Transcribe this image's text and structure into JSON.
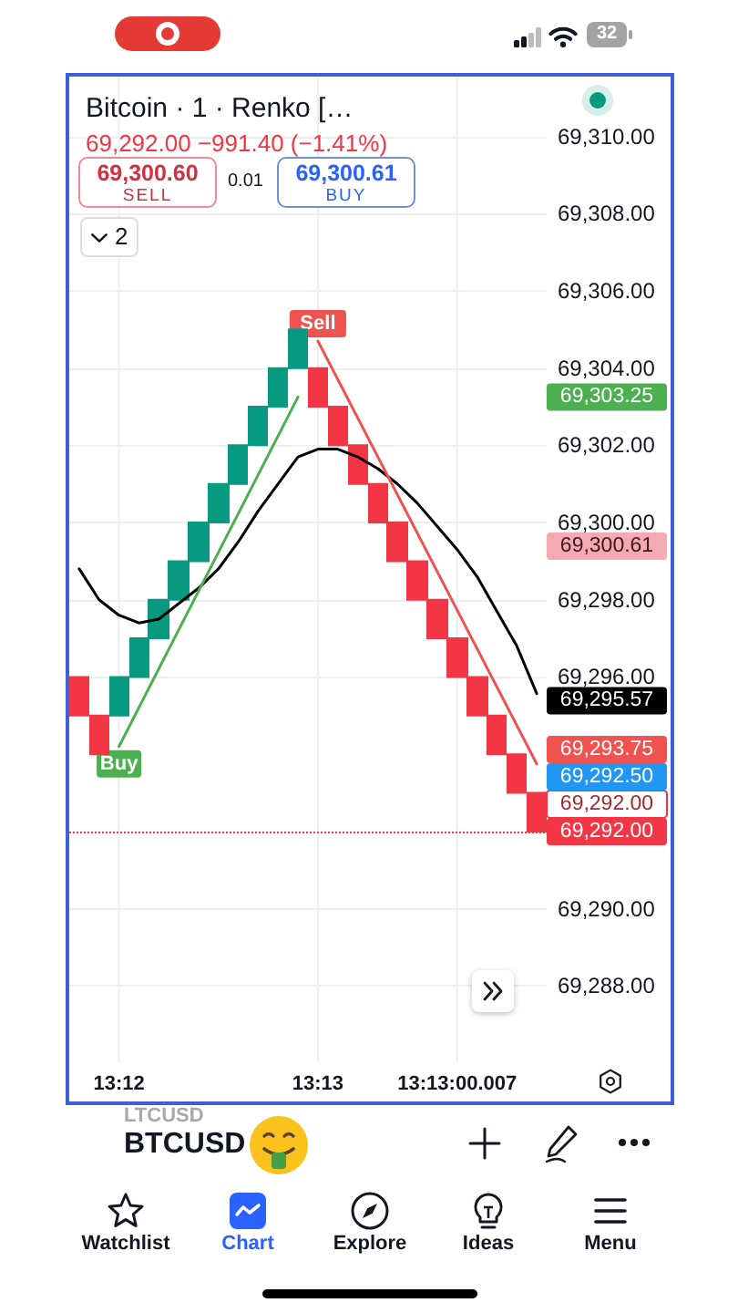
{
  "chart_data": {
    "type": "candlestick",
    "title": "Bitcoin · 1 · Renko […",
    "subtitle": "69,292.00 −991.40 (−1.41%)",
    "categories": [
      null,
      null,
      "13:12",
      null,
      null,
      null,
      null,
      null,
      null,
      null,
      null,
      null,
      "13:13",
      null,
      null,
      null,
      null,
      null,
      null,
      "13:13:00.007",
      null,
      null,
      null,
      null
    ],
    "ohlc": [
      [
        69296,
        69296,
        69295,
        69295
      ],
      [
        69295,
        69295,
        69294,
        69294
      ],
      [
        69295,
        69296,
        69295,
        69296
      ],
      [
        69296,
        69297,
        69296,
        69297
      ],
      [
        69297,
        69298,
        69297,
        69298
      ],
      [
        69298,
        69299,
        69298,
        69299
      ],
      [
        69299,
        69300,
        69299,
        69300
      ],
      [
        69300,
        69301,
        69300,
        69301
      ],
      [
        69301,
        69302,
        69301,
        69302
      ],
      [
        69302,
        69303,
        69302,
        69303
      ],
      [
        69303,
        69304,
        69303,
        69304
      ],
      [
        69304,
        69305,
        69304,
        69305
      ],
      [
        69304,
        69304,
        69303,
        69303
      ],
      [
        69303,
        69303,
        69302,
        69302
      ],
      [
        69302,
        69302,
        69301,
        69301
      ],
      [
        69301,
        69301,
        69300,
        69300
      ],
      [
        69300,
        69300,
        69299,
        69299
      ],
      [
        69299,
        69299,
        69298,
        69298
      ],
      [
        69298,
        69298,
        69297,
        69297
      ],
      [
        69297,
        69297,
        69296,
        69296
      ],
      [
        69296,
        69296,
        69295,
        69295
      ],
      [
        69295,
        69295,
        69294,
        69294
      ],
      [
        69294,
        69294,
        69293,
        69293
      ],
      [
        69293,
        69293,
        69292,
        69292
      ]
    ],
    "colors": [
      "#f23645",
      "#f23645",
      "#089981",
      "#089981",
      "#089981",
      "#089981",
      "#089981",
      "#089981",
      "#089981",
      "#089981",
      "#089981",
      "#089981",
      "#f23645",
      "#f23645",
      "#f23645",
      "#f23645",
      "#f23645",
      "#f23645",
      "#f23645",
      "#f23645",
      "#f23645",
      "#f23645",
      "#f23645",
      "#f23645"
    ],
    "series": [
      {
        "type": "line",
        "color": "#000000",
        "values": [
          69298.8,
          69298.0,
          69297.6,
          69297.4,
          69297.5,
          69297.9,
          69298.3,
          69298.8,
          69299.5,
          69300.3,
          69301.0,
          69301.7,
          69301.9,
          69301.9,
          69301.7,
          69301.4,
          69301.0,
          69300.5,
          69299.9,
          69299.3,
          69298.6,
          69297.7,
          69296.8,
          69295.57
        ],
        "value_labels": [
          null,
          null,
          null,
          null,
          null,
          null,
          null,
          null,
          null,
          null,
          null,
          null,
          null,
          null,
          null,
          null,
          null,
          null,
          null,
          null,
          null,
          null,
          null,
          "69,295.57"
        ]
      },
      {
        "type": "line",
        "color": "#4caf50",
        "values": [
          null,
          null,
          69294.2,
          null,
          null,
          null,
          null,
          null,
          null,
          null,
          null,
          69303.25,
          null,
          null,
          null,
          null,
          null,
          null,
          null,
          null,
          null,
          null,
          null,
          null
        ]
      },
      {
        "type": "line",
        "color": "#ef5350",
        "values": [
          null,
          null,
          null,
          null,
          null,
          null,
          null,
          null,
          null,
          null,
          null,
          null,
          69304.7,
          null,
          null,
          null,
          null,
          null,
          null,
          null,
          null,
          null,
          null,
          69293.75
        ],
        "value_labels": [
          null,
          null,
          null,
          null,
          null,
          null,
          null,
          null,
          null,
          null,
          null,
          null,
          null,
          null,
          null,
          null,
          null,
          null,
          null,
          null,
          null,
          null,
          null,
          "69,293.75"
        ]
      }
    ],
    "ylim": [
      69286,
      69311.5
    ],
    "yticks": [
      {
        "value": 69288,
        "label": "69,288.00"
      },
      {
        "value": 69290,
        "label": "69,290.00"
      },
      {
        "value": 69296,
        "label": "69,296.00"
      },
      {
        "value": 69298,
        "label": "69,298.00"
      },
      {
        "value": 69300,
        "label": "69,300.00"
      },
      {
        "value": 69302,
        "label": "69,302.00"
      },
      {
        "value": 69304,
        "label": "69,304.00"
      },
      {
        "value": 69306,
        "label": "69,306.00"
      },
      {
        "value": 69308,
        "label": "69,308.00"
      },
      {
        "value": 69310,
        "label": "69,310.00"
      }
    ],
    "grid": true,
    "ref_lines": [
      {
        "axis": "y",
        "value": 69292,
        "label": "69,292.00",
        "color": "#f23645",
        "line_style": "dotted"
      }
    ],
    "annotations": [
      {
        "text": "Buy",
        "x": "13:12",
        "y": 69294.2
      },
      {
        "text": "Sell",
        "x": "13:13",
        "y": 69304.7
      },
      "69,303.25",
      "69,300.61",
      "69,292.50",
      "69,292.00",
      "69,300.60",
      "SELL",
      "0.01",
      "69,300.61",
      "BUY",
      "2",
      "LTCUSD",
      "BTCUSD",
      "Watchlist",
      "Chart",
      "Explore",
      "Ideas",
      "Menu",
      "32"
    ]
  }
}
